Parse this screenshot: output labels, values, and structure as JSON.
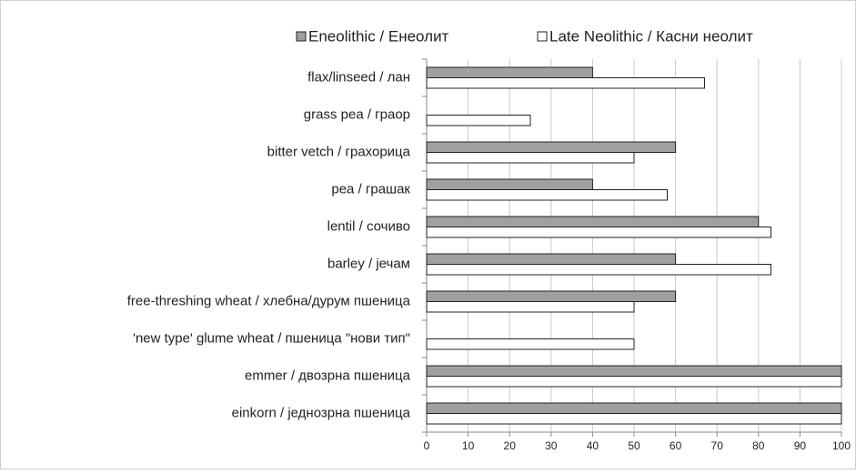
{
  "chart_data": {
    "type": "bar",
    "orientation": "horizontal",
    "categories": [
      "flax/linseed / лан",
      "grass pea / граор",
      "bitter vetch / грахорица",
      "pea / грашак",
      "lentil / сочиво",
      "barley / јечам",
      "free-threshing wheat / хлебна/дурум пшеница",
      "'new type' glume wheat / пшеница \"нови тип\"",
      "emmer / двозрна пшеница",
      "einkorn / једнозрна пшеница"
    ],
    "series": [
      {
        "name": "Eneolithic / Енеолит",
        "color": "#a0a0a0",
        "values": [
          40,
          0,
          60,
          40,
          80,
          60,
          60,
          0,
          100,
          100
        ]
      },
      {
        "name": "Late Neolithic / Касни неолит",
        "color": "#ffffff",
        "values": [
          67,
          25,
          50,
          58,
          83,
          83,
          50,
          50,
          100,
          100
        ]
      }
    ],
    "xlim": [
      0,
      100
    ],
    "xticks": [
      0,
      10,
      20,
      30,
      40,
      50,
      60,
      70,
      80,
      90,
      100
    ],
    "grid": true,
    "legend": "top"
  }
}
